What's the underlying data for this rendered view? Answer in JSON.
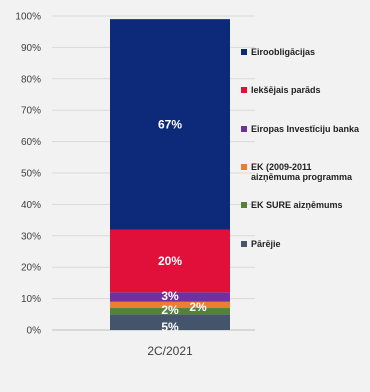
{
  "chart_data": {
    "type": "bar",
    "stacked": true,
    "categories": [
      "2C/2021"
    ],
    "ylim": [
      0,
      100
    ],
    "yticks": [
      "0%",
      "10%",
      "20%",
      "30%",
      "40%",
      "50%",
      "60%",
      "70%",
      "80%",
      "90%",
      "100%"
    ],
    "series": [
      {
        "name": "Pārējie",
        "values": [
          5
        ],
        "label": "5%",
        "color": "#44546a"
      },
      {
        "name": "EK SURE aizņēmums",
        "values": [
          2
        ],
        "label": "2%",
        "color": "#548235"
      },
      {
        "name": "EK (2009-2011 aizņēmuma programma)",
        "values": [
          2
        ],
        "label": "2%",
        "color": "#ed7d31"
      },
      {
        "name": "Eiropas Investīciju banka",
        "values": [
          3
        ],
        "label": "3%",
        "color": "#7030a0"
      },
      {
        "name": "Iekšējais parāds",
        "values": [
          20
        ],
        "label": "20%",
        "color": "#e0103a"
      },
      {
        "name": "Eiroobligācijas",
        "values": [
          67
        ],
        "label": "67%",
        "color": "#0d2a7a"
      }
    ],
    "legend": [
      {
        "text": "Eiroobligācijas",
        "color": "#0d2a7a"
      },
      {
        "text": "Iekšējais parāds",
        "color": "#e0103a"
      },
      {
        "text": "Eiropas Investīciju banka",
        "color": "#7030a0"
      },
      {
        "text": "EK (2009-2011",
        "text2": "aizņēmuma programma",
        "color": "#ed7d31"
      },
      {
        "text": "EK SURE aizņēmums",
        "color": "#548235"
      },
      {
        "text": "Pārējie",
        "color": "#44546a"
      }
    ],
    "legend_position": "right",
    "grid": true
  }
}
